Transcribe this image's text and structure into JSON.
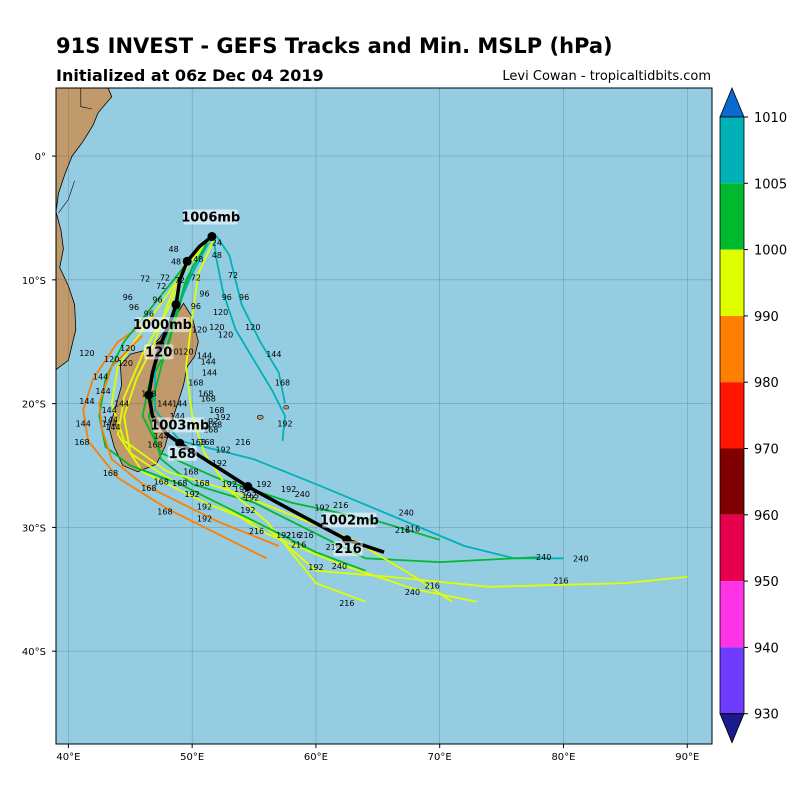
{
  "header": {
    "title": "91S INVEST - GEFS Tracks and Min. MSLP (hPa)",
    "subtitle": "Initialized at 06z Dec 04 2019",
    "credit": "Levi Cowan - tropicaltidbits.com"
  },
  "map": {
    "lon_range": [
      39,
      92
    ],
    "lat_range": [
      -47.5,
      5.5
    ],
    "lon_ticks": [
      {
        "v": 40,
        "t": "40°E"
      },
      {
        "v": 50,
        "t": "50°E"
      },
      {
        "v": 60,
        "t": "60°E"
      },
      {
        "v": 70,
        "t": "70°E"
      },
      {
        "v": 80,
        "t": "80°E"
      },
      {
        "v": 90,
        "t": "90°E"
      }
    ],
    "lat_ticks": [
      {
        "v": 0,
        "t": "0°"
      },
      {
        "v": -10,
        "t": "10°S"
      },
      {
        "v": -20,
        "t": "20°S"
      },
      {
        "v": -30,
        "t": "30°S"
      },
      {
        "v": -40,
        "t": "40°S"
      }
    ],
    "ocean_color": "#94cce2",
    "land_color": "#c19a6b",
    "grid": true
  },
  "chart_data": {
    "type": "map-tracks",
    "mean_track": [
      [
        51.6,
        -6.5
      ],
      [
        50.6,
        -7.3
      ],
      [
        49.6,
        -8.5
      ],
      [
        49,
        -10
      ],
      [
        48.7,
        -12
      ],
      [
        48.2,
        -13.5
      ],
      [
        47.4,
        -15.3
      ],
      [
        46.8,
        -17.5
      ],
      [
        46.5,
        -19.3
      ],
      [
        46.8,
        -21
      ],
      [
        48,
        -22.5
      ],
      [
        49,
        -23.2
      ],
      [
        51.5,
        -24.8
      ],
      [
        54.5,
        -26.7
      ],
      [
        58,
        -28.6
      ],
      [
        62.5,
        -31
      ],
      [
        65.5,
        -32
      ]
    ],
    "mean_points": [
      [
        51.6,
        -6.5
      ],
      [
        49.6,
        -8.5
      ],
      [
        48.7,
        -12
      ],
      [
        47.4,
        -15.3
      ],
      [
        46.5,
        -19.3
      ],
      [
        49,
        -23.2
      ],
      [
        54.5,
        -26.7
      ],
      [
        62.5,
        -31
      ]
    ],
    "mslp_labels": [
      {
        "text": "1006mb",
        "lon": 51.5,
        "lat": -5.2
      },
      {
        "text": "1000mb",
        "lon": 47.6,
        "lat": -13.9
      },
      {
        "text": "120",
        "lon": 47.3,
        "lat": -16.1
      },
      {
        "text": "1003mb",
        "lon": 49,
        "lat": -22
      },
      {
        "text": "168",
        "lon": 49.2,
        "lat": -24.3
      },
      {
        "text": "1002mb",
        "lon": 62.7,
        "lat": -29.7
      },
      {
        "text": "216",
        "lon": 62.6,
        "lat": -32
      }
    ],
    "members": [
      {
        "color": "#dfff00",
        "points": [
          [
            51.5,
            -6.5
          ],
          [
            49.5,
            -8.5
          ],
          [
            48,
            -12
          ],
          [
            47,
            -15
          ],
          [
            45.5,
            -18
          ],
          [
            44.5,
            -21
          ],
          [
            45,
            -24
          ],
          [
            48,
            -26
          ],
          [
            52,
            -28
          ],
          [
            56,
            -30.5
          ],
          [
            62,
            -33
          ],
          [
            68,
            -35
          ],
          [
            73,
            -36
          ]
        ]
      },
      {
        "color": "#00b92e",
        "points": [
          [
            51.6,
            -6.6
          ],
          [
            50,
            -9
          ],
          [
            49,
            -12
          ],
          [
            48,
            -15.5
          ],
          [
            46.5,
            -18.5
          ],
          [
            46,
            -21
          ],
          [
            47.5,
            -24
          ],
          [
            52,
            -26
          ],
          [
            58,
            -28
          ],
          [
            65,
            -29.5
          ],
          [
            70,
            -31
          ]
        ]
      },
      {
        "color": "#00b2b6",
        "points": [
          [
            51.7,
            -6.4
          ],
          [
            52,
            -8.5
          ],
          [
            52.5,
            -11
          ],
          [
            53.5,
            -14
          ],
          [
            55,
            -16.5
          ],
          [
            56.5,
            -19
          ],
          [
            57.5,
            -21
          ],
          [
            57.3,
            -23
          ]
        ]
      },
      {
        "color": "#00b2b6",
        "points": [
          [
            51.6,
            -6.5
          ],
          [
            50,
            -9.5
          ],
          [
            48.5,
            -13
          ],
          [
            47,
            -17
          ],
          [
            47,
            -20.5
          ],
          [
            49,
            -23
          ],
          [
            55,
            -24.5
          ],
          [
            60,
            -26.5
          ],
          [
            66,
            -29
          ],
          [
            72,
            -31.5
          ],
          [
            76,
            -32.5
          ],
          [
            80,
            -32.5
          ]
        ]
      },
      {
        "color": "#dfff00",
        "points": [
          [
            51.4,
            -6.8
          ],
          [
            49.5,
            -9
          ],
          [
            48,
            -12.5
          ],
          [
            46,
            -16
          ],
          [
            44.5,
            -19.5
          ],
          [
            44,
            -22.5
          ],
          [
            46,
            -25.5
          ],
          [
            51,
            -28
          ],
          [
            56,
            -30
          ],
          [
            60,
            -33.5
          ],
          [
            66,
            -34
          ],
          [
            74,
            -34.8
          ],
          [
            85,
            -34.5
          ],
          [
            90,
            -34
          ]
        ]
      },
      {
        "color": "#ff7f00",
        "points": [
          [
            47,
            -13
          ],
          [
            44,
            -15
          ],
          [
            42,
            -18
          ],
          [
            41.2,
            -20.5
          ],
          [
            41.6,
            -23
          ],
          [
            44,
            -26
          ],
          [
            48,
            -28.5
          ],
          [
            56,
            -32.5
          ]
        ]
      },
      {
        "color": "#00b92e",
        "points": [
          [
            51.2,
            -7
          ],
          [
            49.5,
            -10
          ],
          [
            48.5,
            -13.5
          ],
          [
            47.5,
            -17
          ],
          [
            46.5,
            -21
          ],
          [
            47.5,
            -24.5
          ],
          [
            50,
            -26.5
          ],
          [
            55,
            -28
          ],
          [
            60,
            -30.5
          ],
          [
            64,
            -32.5
          ],
          [
            70,
            -32.8
          ],
          [
            78,
            -32.4
          ]
        ]
      },
      {
        "color": "#dfff00",
        "points": [
          [
            51.8,
            -6.7
          ],
          [
            50.5,
            -9.5
          ],
          [
            50,
            -13
          ],
          [
            49.5,
            -17
          ],
          [
            50,
            -21
          ],
          [
            51,
            -24
          ],
          [
            53,
            -27
          ],
          [
            56,
            -29.5
          ],
          [
            58,
            -32
          ],
          [
            60,
            -34.5
          ],
          [
            64,
            -36
          ]
        ]
      },
      {
        "color": "#00b92e",
        "points": [
          [
            50.5,
            -7.5
          ],
          [
            48.5,
            -10
          ],
          [
            46.5,
            -12.5
          ],
          [
            44.5,
            -15
          ],
          [
            43,
            -18
          ],
          [
            42.5,
            -21
          ],
          [
            43,
            -23.5
          ],
          [
            45,
            -25
          ],
          [
            49,
            -26.5
          ],
          [
            53,
            -28.5
          ],
          [
            57,
            -30.5
          ],
          [
            60,
            -32
          ],
          [
            64,
            -33.5
          ]
        ]
      },
      {
        "color": "#dfff00",
        "points": [
          [
            51,
            -7
          ],
          [
            48.5,
            -10.5
          ],
          [
            46,
            -14
          ],
          [
            44,
            -17
          ],
          [
            43.5,
            -20
          ],
          [
            44.5,
            -23
          ],
          [
            48,
            -25.5
          ],
          [
            53,
            -27
          ],
          [
            58,
            -29
          ],
          [
            63,
            -31
          ],
          [
            68,
            -34
          ],
          [
            71,
            -36
          ]
        ]
      },
      {
        "color": "#ff7f00",
        "points": [
          [
            46,
            -14.5
          ],
          [
            43.5,
            -17
          ],
          [
            42.5,
            -20
          ],
          [
            42.7,
            -22
          ],
          [
            43.5,
            -24.5
          ],
          [
            46,
            -26.5
          ],
          [
            49,
            -28
          ],
          [
            52,
            -29.5
          ],
          [
            57,
            -31.5
          ]
        ]
      },
      {
        "color": "#00b2b6",
        "points": [
          [
            52,
            -6.5
          ],
          [
            53,
            -8
          ],
          [
            53.5,
            -10
          ],
          [
            54,
            -12
          ],
          [
            55.5,
            -15
          ],
          [
            57,
            -17.5
          ],
          [
            57.5,
            -20
          ]
        ]
      }
    ],
    "hour_labels": [
      {
        "t": "24",
        "lon": 52,
        "lat": -7
      },
      {
        "t": "48",
        "lon": 48.5,
        "lat": -7.5
      },
      {
        "t": "48",
        "lon": 48.7,
        "lat": -8.5
      },
      {
        "t": "48",
        "lon": 50.5,
        "lat": -8.3
      },
      {
        "t": "48",
        "lon": 52,
        "lat": -8
      },
      {
        "t": "72",
        "lon": 46.2,
        "lat": -9.9
      },
      {
        "t": "72",
        "lon": 47.8,
        "lat": -9.8
      },
      {
        "t": "72",
        "lon": 49,
        "lat": -10
      },
      {
        "t": "72",
        "lon": 50.3,
        "lat": -9.8
      },
      {
        "t": "72",
        "lon": 53.3,
        "lat": -9.6
      },
      {
        "t": "72",
        "lon": 47.5,
        "lat": -10.5
      },
      {
        "t": "96",
        "lon": 44.8,
        "lat": -11.4
      },
      {
        "t": "96",
        "lon": 47.2,
        "lat": -11.6
      },
      {
        "t": "96",
        "lon": 51,
        "lat": -11.1
      },
      {
        "t": "96",
        "lon": 52.8,
        "lat": -11.4
      },
      {
        "t": "96",
        "lon": 54.2,
        "lat": -11.4
      },
      {
        "t": "96",
        "lon": 45.3,
        "lat": -12.2
      },
      {
        "t": "96",
        "lon": 46.5,
        "lat": -12.7
      },
      {
        "t": "96",
        "lon": 50.3,
        "lat": -12.1
      },
      {
        "t": "120",
        "lon": 52.3,
        "lat": -12.6
      },
      {
        "t": "120",
        "lon": 54.9,
        "lat": -13.8
      },
      {
        "t": "120",
        "lon": 50.6,
        "lat": -14
      },
      {
        "t": "120",
        "lon": 52,
        "lat": -13.8
      },
      {
        "t": "120",
        "lon": 52.7,
        "lat": -14.4
      },
      {
        "t": "120",
        "lon": 44.8,
        "lat": -15.5
      },
      {
        "t": "120",
        "lon": 41.5,
        "lat": -15.9
      },
      {
        "t": "120",
        "lon": 43.5,
        "lat": -16.4
      },
      {
        "t": "120",
        "lon": 48.3,
        "lat": -15.8
      },
      {
        "t": "120",
        "lon": 49.5,
        "lat": -15.8
      },
      {
        "t": "120",
        "lon": 44.6,
        "lat": -16.7
      },
      {
        "t": "144",
        "lon": 56.6,
        "lat": -16
      },
      {
        "t": "144",
        "lon": 51,
        "lat": -16.1
      },
      {
        "t": "144",
        "lon": 51.3,
        "lat": -16.6
      },
      {
        "t": "144",
        "lon": 51.4,
        "lat": -17.5
      },
      {
        "t": "144",
        "lon": 42.6,
        "lat": -17.8
      },
      {
        "t": "144",
        "lon": 42.8,
        "lat": -19
      },
      {
        "t": "144",
        "lon": 41.5,
        "lat": -19.8
      },
      {
        "t": "144",
        "lon": 44.3,
        "lat": -20
      },
      {
        "t": "144",
        "lon": 43.3,
        "lat": -20.5
      },
      {
        "t": "144",
        "lon": 47.8,
        "lat": -20
      },
      {
        "t": "144",
        "lon": 49,
        "lat": -20
      },
      {
        "t": "144",
        "lon": 48.8,
        "lat": -21
      },
      {
        "t": "144",
        "lon": 41.2,
        "lat": -21.6
      },
      {
        "t": "144",
        "lon": 43.4,
        "lat": -21.3
      },
      {
        "t": "144",
        "lon": 43.3,
        "lat": -21.6
      },
      {
        "t": "144",
        "lon": 43.6,
        "lat": -21.9
      },
      {
        "t": "144",
        "lon": 47.5,
        "lat": -22.6
      },
      {
        "t": "168",
        "lon": 50.3,
        "lat": -18.3
      },
      {
        "t": "168",
        "lon": 57.3,
        "lat": -18.3
      },
      {
        "t": "168",
        "lon": 51.1,
        "lat": -19.2
      },
      {
        "t": "168",
        "lon": 51.3,
        "lat": -19.6
      },
      {
        "t": "168",
        "lon": 46.5,
        "lat": -19.2
      },
      {
        "t": "168",
        "lon": 52,
        "lat": -20.5
      },
      {
        "t": "168",
        "lon": 51.8,
        "lat": -21.7
      },
      {
        "t": "168",
        "lon": 51.5,
        "lat": -22.1
      },
      {
        "t": "168",
        "lon": 41.1,
        "lat": -23.1
      },
      {
        "t": "168",
        "lon": 47,
        "lat": -23.3
      },
      {
        "t": "168",
        "lon": 50.5,
        "lat": -23.1
      },
      {
        "t": "168",
        "lon": 51.2,
        "lat": -23.1
      },
      {
        "t": "168",
        "lon": 43.4,
        "lat": -25.6
      },
      {
        "t": "168",
        "lon": 49.9,
        "lat": -25.5
      },
      {
        "t": "168",
        "lon": 50.8,
        "lat": -26.4
      },
      {
        "t": "168",
        "lon": 47.5,
        "lat": -26.3
      },
      {
        "t": "168",
        "lon": 49,
        "lat": -26.4
      },
      {
        "t": "168",
        "lon": 46.5,
        "lat": -26.8
      },
      {
        "t": "168",
        "lon": 47.8,
        "lat": -28.7
      },
      {
        "t": "192",
        "lon": 52.5,
        "lat": -21.1
      },
      {
        "t": "192",
        "lon": 51.5,
        "lat": -21.4
      },
      {
        "t": "192",
        "lon": 57.5,
        "lat": -21.6
      },
      {
        "t": "192",
        "lon": 52.5,
        "lat": -23.7
      },
      {
        "t": "192",
        "lon": 52.2,
        "lat": -24.8
      },
      {
        "t": "192",
        "lon": 53,
        "lat": -26.5
      },
      {
        "t": "192",
        "lon": 54,
        "lat": -26.9
      },
      {
        "t": "192",
        "lon": 55.8,
        "lat": -26.5
      },
      {
        "t": "192",
        "lon": 57.8,
        "lat": -26.9
      },
      {
        "t": "192",
        "lon": 54.8,
        "lat": -27.6
      },
      {
        "t": "192",
        "lon": 54.6,
        "lat": -27.4
      },
      {
        "t": "192",
        "lon": 50,
        "lat": -27.3
      },
      {
        "t": "192",
        "lon": 51,
        "lat": -28.3
      },
      {
        "t": "192",
        "lon": 51,
        "lat": -29.3
      },
      {
        "t": "192",
        "lon": 54.5,
        "lat": -28.6
      },
      {
        "t": "192",
        "lon": 60.5,
        "lat": -28.4
      },
      {
        "t": "192",
        "lon": 57.4,
        "lat": -30.6
      },
      {
        "t": "192",
        "lon": 60,
        "lat": -33.2
      },
      {
        "t": "216",
        "lon": 54.1,
        "lat": -23.1
      },
      {
        "t": "216",
        "lon": 62,
        "lat": -28.2
      },
      {
        "t": "216",
        "lon": 67,
        "lat": -30.2
      },
      {
        "t": "216",
        "lon": 67.8,
        "lat": -30.1
      },
      {
        "t": "216",
        "lon": 58.2,
        "lat": -30.6
      },
      {
        "t": "216",
        "lon": 59.2,
        "lat": -30.6
      },
      {
        "t": "216",
        "lon": 55.2,
        "lat": -30.3
      },
      {
        "t": "216",
        "lon": 58.6,
        "lat": -31.4
      },
      {
        "t": "216",
        "lon": 61.4,
        "lat": -31.6
      },
      {
        "t": "216",
        "lon": 69.4,
        "lat": -34.7
      },
      {
        "t": "216",
        "lon": 79.8,
        "lat": -34.3
      },
      {
        "t": "216",
        "lon": 62.5,
        "lat": -36.1
      },
      {
        "t": "240",
        "lon": 58.9,
        "lat": -27.3
      },
      {
        "t": "240",
        "lon": 67.3,
        "lat": -28.8
      },
      {
        "t": "240",
        "lon": 61.9,
        "lat": -33.1
      },
      {
        "t": "240",
        "lon": 67.8,
        "lat": -35.2
      },
      {
        "t": "240",
        "lon": 78.4,
        "lat": -32.4
      },
      {
        "t": "240",
        "lon": 81.4,
        "lat": -32.5
      }
    ]
  },
  "colorbar": {
    "levels": [
      "1010",
      "1005",
      "1000",
      "990",
      "980",
      "970",
      "960",
      "950",
      "940",
      "930"
    ],
    "colors": [
      "#00b2b6",
      "#00b92e",
      "#dfff00",
      "#ff7f00",
      "#ff1500",
      "#7f0000",
      "#e6004d",
      "#ff33e6",
      "#6e3bff"
    ],
    "top_arrow_color": "#0a6ad0",
    "bottom_arrow_color": "#1a1a8c"
  }
}
